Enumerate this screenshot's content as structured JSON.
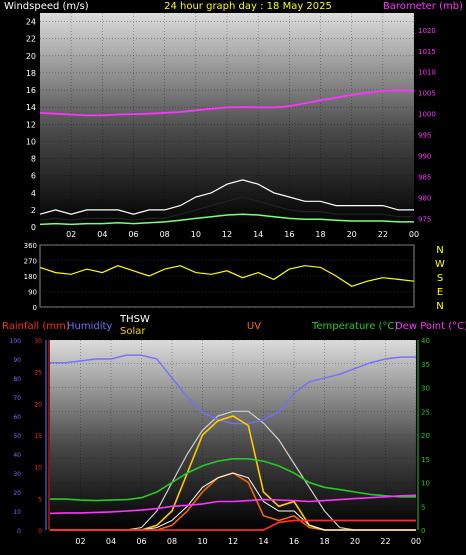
{
  "colors": {
    "background": "#000000",
    "windspeed": "#ffffff",
    "windgust": "#ffffff",
    "windavg": "#7cff7c",
    "barometer": "#ff33ff",
    "winddir": "#ffff00",
    "rainfall": "#ff2a2a",
    "humidity": "#7070ff",
    "thsw": "#ffffff",
    "solar": "#ffcc00",
    "uv": "#ff6a00",
    "temperature": "#22cc22",
    "dewpoint": "#ff33ff",
    "solar_max": "#cfcfcf"
  },
  "chart_data": [
    {
      "type": "line",
      "labels": {
        "left": "Windspeed (m/s)",
        "center": "24 hour graph day : 18 May 2025",
        "right": "Barometer (mb)"
      },
      "x_ticks": [
        "02",
        "04",
        "06",
        "08",
        "10",
        "12",
        "14",
        "16",
        "18",
        "20",
        "22",
        "00"
      ],
      "y_left_ticks": [
        0,
        2,
        4,
        6,
        8,
        10,
        12,
        14,
        16,
        18,
        20,
        22,
        24
      ],
      "y_left_range": [
        0,
        25
      ],
      "y_right_ticks": [
        975,
        980,
        985,
        990,
        995,
        1000,
        1005,
        1010,
        1015,
        1020
      ],
      "y_right_range": [
        973,
        1024
      ],
      "x_hours": [
        0,
        1,
        2,
        3,
        4,
        5,
        6,
        7,
        8,
        9,
        10,
        11,
        12,
        13,
        14,
        15,
        16,
        17,
        18,
        19,
        20,
        21,
        22,
        23,
        24
      ],
      "series": [
        {
          "key": "gust",
          "values": [
            1.5,
            2,
            1.5,
            2,
            2,
            2,
            1.5,
            2,
            2,
            2.5,
            3.5,
            4,
            5,
            5.5,
            5,
            4,
            3.5,
            3,
            3,
            2.5,
            2.5,
            2.5,
            2.5,
            2,
            2
          ]
        },
        {
          "key": "wind",
          "values": [
            0.8,
            1,
            0.8,
            1,
            1,
            1,
            0.8,
            1,
            1,
            1.5,
            2,
            2.5,
            3,
            3.5,
            3,
            2.5,
            2,
            1.8,
            1.8,
            1.5,
            1.5,
            1.5,
            1.5,
            1.2,
            1.2
          ]
        },
        {
          "key": "avg",
          "values": [
            0.3,
            0.4,
            0.3,
            0.4,
            0.4,
            0.5,
            0.4,
            0.5,
            0.6,
            0.8,
            1,
            1.2,
            1.4,
            1.5,
            1.4,
            1.2,
            1,
            0.9,
            0.9,
            0.8,
            0.7,
            0.7,
            0.7,
            0.6,
            0.6
          ]
        },
        {
          "key": "barometer",
          "values": [
            1000.2,
            1000,
            999.8,
            999.6,
            999.6,
            999.8,
            999.9,
            1000,
            1000.2,
            1000.4,
            1000.8,
            1001.2,
            1001.5,
            1001.6,
            1001.5,
            1001.5,
            1001.8,
            1002.5,
            1003.2,
            1003.8,
            1004.5,
            1005,
            1005.4,
            1005.6,
            1005.5
          ]
        }
      ]
    },
    {
      "type": "line",
      "labels": {
        "right_compass": [
          "N",
          "W",
          "S",
          "E",
          "N"
        ]
      },
      "y_ticks": [
        0,
        90,
        180,
        270,
        360
      ],
      "y_range": [
        0,
        360
      ],
      "x_hours": [
        0,
        1,
        2,
        3,
        4,
        5,
        6,
        7,
        8,
        9,
        10,
        11,
        12,
        13,
        14,
        15,
        16,
        17,
        18,
        19,
        20,
        21,
        22,
        23,
        24
      ],
      "series": [
        {
          "key": "direction",
          "values": [
            230,
            200,
            190,
            220,
            200,
            240,
            210,
            180,
            220,
            240,
            200,
            190,
            210,
            170,
            200,
            160,
            220,
            240,
            230,
            180,
            120,
            150,
            170,
            160,
            150
          ]
        }
      ]
    },
    {
      "type": "line",
      "labels": {
        "rainfall": "Rainfall (mm)",
        "humidity": "Humidity",
        "thsw": "THSW",
        "solar": "Solar",
        "uv": "UV",
        "temperature": "Temperature (°C)",
        "dewpoint": "Dew Point (°C)"
      },
      "x_ticks": [
        "02",
        "04",
        "06",
        "08",
        "10",
        "12",
        "14",
        "16",
        "18",
        "20",
        "22",
        "00"
      ],
      "y_humidity_ticks": [
        0,
        10,
        20,
        30,
        40,
        50,
        60,
        70,
        80,
        90,
        100
      ],
      "y_rain_ticks": [
        0,
        5,
        10,
        15,
        20,
        25,
        30
      ],
      "y_temp_ticks": [
        0,
        5,
        10,
        15,
        20,
        25,
        30,
        35,
        40
      ],
      "y_temp_range": [
        0,
        40
      ],
      "x_hours": [
        0,
        1,
        2,
        3,
        4,
        5,
        6,
        7,
        8,
        9,
        10,
        11,
        12,
        13,
        14,
        15,
        16,
        17,
        18,
        19,
        20,
        21,
        22,
        23,
        24
      ],
      "series": [
        {
          "key": "humidity",
          "values": [
            88,
            88,
            89,
            90,
            90,
            92,
            92,
            90,
            80,
            70,
            62,
            58,
            56,
            56,
            58,
            62,
            72,
            78,
            80,
            82,
            85,
            88,
            90,
            91,
            91
          ]
        },
        {
          "key": "temperature",
          "values": [
            6.5,
            6.5,
            6.3,
            6.2,
            6.3,
            6.4,
            6.8,
            8,
            10,
            12,
            13.5,
            14.5,
            15,
            15,
            14.5,
            13.5,
            12,
            10,
            9,
            8.5,
            8,
            7.5,
            7.2,
            7,
            7
          ]
        },
        {
          "key": "dewpoint",
          "values": [
            3.5,
            3.6,
            3.6,
            3.7,
            3.8,
            4,
            4.2,
            4.5,
            5,
            5.2,
            5.5,
            6,
            6,
            6.2,
            6.4,
            6.3,
            6.2,
            6,
            6.2,
            6.4,
            6.6,
            6.8,
            7,
            7.2,
            7.3
          ]
        },
        {
          "key": "solar_max",
          "values": [
            0,
            0,
            0,
            0,
            0,
            0,
            0.5,
            4,
            10,
            16,
            21,
            24,
            25,
            25,
            22.5,
            19,
            14,
            9,
            4,
            0.5,
            0,
            0,
            0,
            0,
            0
          ]
        },
        {
          "key": "solar",
          "values": [
            0,
            0,
            0,
            0,
            0,
            0,
            0,
            1,
            4,
            12,
            20,
            23,
            24,
            22,
            8,
            5,
            6,
            1,
            0,
            0,
            0,
            0,
            0,
            0,
            0
          ]
        },
        {
          "key": "thsw",
          "values": [
            0,
            0,
            0,
            0,
            0,
            0,
            0,
            0.5,
            2,
            5,
            9,
            11,
            12,
            11,
            6,
            4,
            4,
            1,
            0,
            0,
            0,
            0,
            0,
            0,
            0
          ]
        },
        {
          "key": "uv",
          "values": [
            0,
            0,
            0,
            0,
            0,
            0,
            0,
            0,
            1,
            4,
            8,
            11,
            12,
            10,
            3,
            2,
            3,
            0.5,
            0,
            0,
            0,
            0,
            0,
            0,
            0
          ]
        },
        {
          "key": "rainfall",
          "values": [
            0,
            0,
            0,
            0,
            0,
            0,
            0,
            0,
            0,
            0,
            0,
            0,
            0,
            0,
            0,
            1.2,
            1.5,
            1.5,
            1.5,
            1.5,
            1.5,
            1.5,
            1.5,
            1.5,
            1.5
          ]
        }
      ]
    }
  ]
}
